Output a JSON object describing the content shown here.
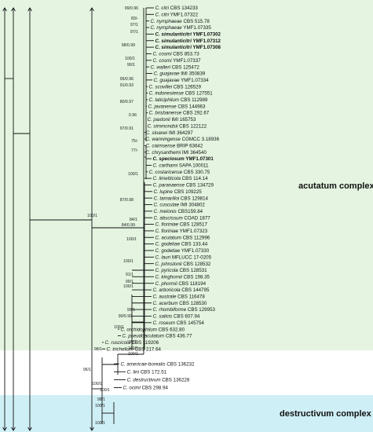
{
  "figure": {
    "panels": [
      {
        "label": "acutatum complex",
        "color": "#e4f4e0"
      },
      {
        "label": "destructivum complex",
        "color": "#cfeff6"
      }
    ],
    "taxa": [
      {
        "species": "C. citri",
        "strain": "CBS 134233",
        "bold": false
      },
      {
        "species": "C. citri",
        "strain": "YMF1.07322",
        "bold": false
      },
      {
        "species": "C. nymphaeae",
        "strain": "CBS 515.78",
        "bold": false
      },
      {
        "species": "C. nymphaeae",
        "strain": "YMF1.07335",
        "bold": false
      },
      {
        "species": "C. simulanticitri",
        "strain": "YMF1.07302",
        "bold": true
      },
      {
        "species": "C. simulanticitri",
        "strain": "YMF1.07312",
        "bold": true
      },
      {
        "species": "C. simulanticitri",
        "strain": "YMF1.07308",
        "bold": true
      },
      {
        "species": "C. cosmi",
        "strain": "CBS 853.73",
        "bold": false
      },
      {
        "species": "C. cosmi",
        "strain": "YMF1.07337",
        "bold": false
      },
      {
        "species": "C. walleri",
        "strain": "CBS 125472",
        "bold": false
      },
      {
        "species": "C. guajavae",
        "strain": "IMI 350839",
        "bold": false
      },
      {
        "species": "C. guajavae",
        "strain": "YMF1.07334",
        "bold": false
      },
      {
        "species": "C. scovillei",
        "strain": "CBS 126529",
        "bold": false
      },
      {
        "species": "C. indonesiense",
        "strain": "CBS 127551",
        "bold": false
      },
      {
        "species": "C. laticiphilum",
        "strain": "CBS 112989",
        "bold": false
      },
      {
        "species": "C. javanense",
        "strain": "CBS 144963",
        "bold": false
      },
      {
        "species": "C. brisbanense",
        "strain": "CBS 292.67",
        "bold": false
      },
      {
        "species": "C. paxtonii",
        "strain": "IMI 165753",
        "bold": false
      },
      {
        "species": "C. simmondsii",
        "strain": "CBS 122122",
        "bold": false
      },
      {
        "species": "C. sloanei",
        "strain": "IMI 364297",
        "bold": false
      },
      {
        "species": "C. wanningense",
        "strain": "CGMCC 3.18936",
        "bold": false
      },
      {
        "species": "C. cairnsense",
        "strain": "BRIP 63642",
        "bold": false
      },
      {
        "species": "C. chrysanthemi",
        "strain": "IMI 364540",
        "bold": false
      },
      {
        "species": "C. speciosum",
        "strain": "YMF1.07301",
        "bold": true
      },
      {
        "species": "C. carthami",
        "strain": "SAPA 100011",
        "bold": false
      },
      {
        "species": "C. costaricense",
        "strain": "CBS 330.75",
        "bold": false
      },
      {
        "species": "C. limetticola",
        "strain": "CBS 114.14",
        "bold": false
      },
      {
        "species": "C. paranaense",
        "strain": "CBS 134729",
        "bold": false
      },
      {
        "species": "C. lupine",
        "strain": "CBS 109225",
        "bold": false
      },
      {
        "species": "C. tamarilloi",
        "strain": "CBS 129814",
        "bold": false
      },
      {
        "species": "C. cuscutae",
        "strain": "IMI 304802",
        "bold": false
      },
      {
        "species": "C. melonis",
        "strain": "CBS159.84",
        "bold": false
      },
      {
        "species": "C. abscissum",
        "strain": "COAD 1877",
        "bold": false
      },
      {
        "species": "C. fioriniae",
        "strain": "CBS 128517",
        "bold": false
      },
      {
        "species": "C. fioriniae",
        "strain": "YMF1.07323",
        "bold": false
      },
      {
        "species": "C. acutatum",
        "strain": "CBS 112996",
        "bold": false
      },
      {
        "species": "C. godetiae",
        "strain": "CBS 133.44",
        "bold": false
      },
      {
        "species": "C. godetiae",
        "strain": "YMF1.07330",
        "bold": false
      },
      {
        "species": "C. lauri",
        "strain": "MFLUCC 17-0205",
        "bold": false
      },
      {
        "species": "C. johnstonii",
        "strain": "CBS 128532",
        "bold": false
      },
      {
        "species": "C. pyricola",
        "strain": "CBS 128531",
        "bold": false
      },
      {
        "species": "C. kinghornii",
        "strain": "CBS 198.35",
        "bold": false
      },
      {
        "species": "C. phormii",
        "strain": "CBS 118194",
        "bold": false
      },
      {
        "species": "C. arboricola",
        "strain": "CBS 144795",
        "bold": false
      },
      {
        "species": "C. australe",
        "strain": "CBS 116478",
        "bold": false
      },
      {
        "species": "C. acerbum",
        "strain": "CBS 128530",
        "bold": false
      },
      {
        "species": "C. rhombiforme",
        "strain": "CBS 129953",
        "bold": false
      },
      {
        "species": "C. salicis",
        "strain": "CBS 607.94",
        "bold": false
      },
      {
        "species": "C. roseum",
        "strain": "CBS 145754",
        "bold": false
      },
      {
        "species": "C. orchidophilum",
        "strain": "CBS 632.80",
        "bold": false
      },
      {
        "species": "C. pseudoacutatum",
        "strain": "CBS 436.77",
        "bold": false
      },
      {
        "species": "C. ruscicola",
        "strain": "CBS 119206",
        "bold": false
      },
      {
        "species": "C. trichellum",
        "strain": "CBS 217.64",
        "bold": false
      },
      {
        "species": "C. americae-borealis",
        "strain": "CBS 136232",
        "bold": false
      },
      {
        "species": "C. lini",
        "strain": "CBS 172.51",
        "bold": false
      },
      {
        "species": "C. destructivum",
        "strain": "CBS 136228",
        "bold": false
      },
      {
        "species": "C. ocimi",
        "strain": "CBS 298.94",
        "bold": false
      }
    ],
    "supports": [
      "99/0.96",
      "97/1",
      "83/-",
      "97/1",
      "98/0.99",
      "100/1",
      "90/1",
      "95/0.96",
      "91/0.93",
      "80/0.97",
      "0.96",
      "97/0.91",
      "75/-",
      "77/-",
      "100/1",
      "87/0.98",
      "84/1",
      "84/0.99",
      "100/1",
      "100/1",
      "91/1",
      "99/1",
      "100/1",
      "99/1",
      "90/0.99",
      "100/1",
      "99/1",
      "100/1",
      "100/1",
      "98/1",
      "96/1",
      "100/1",
      "100/1",
      "100/1",
      "98/1",
      "100/1",
      "100/1"
    ]
  }
}
